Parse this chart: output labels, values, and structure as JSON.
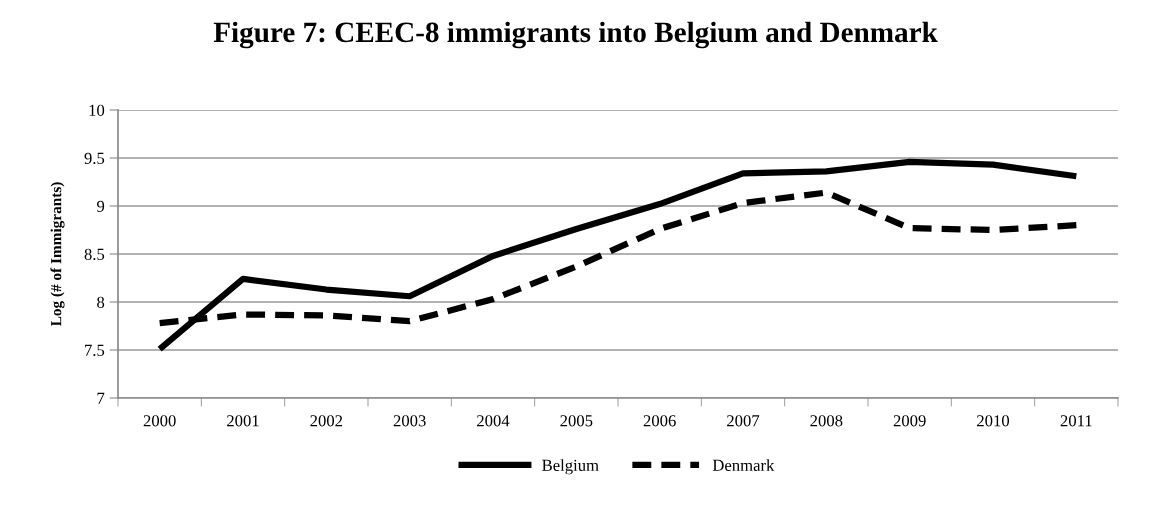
{
  "chart_data": {
    "type": "line",
    "title": "Figure 7: CEEC-8 immigrants into Belgium and Denmark",
    "ylabel": "Log (# of Immigrants)",
    "categories": [
      "2000",
      "2001",
      "2002",
      "2003",
      "2004",
      "2005",
      "2006",
      "2007",
      "2008",
      "2009",
      "2010",
      "2011"
    ],
    "series": [
      {
        "name": "Belgium",
        "color": "#000000",
        "line_style": "solid",
        "values": [
          7.51,
          8.24,
          8.13,
          8.06,
          8.48,
          8.76,
          9.02,
          9.34,
          9.36,
          9.46,
          9.43,
          9.31
        ]
      },
      {
        "name": "Denmark",
        "color": "#000000",
        "line_style": "dashed",
        "values": [
          7.78,
          7.87,
          7.86,
          7.8,
          8.03,
          8.37,
          8.76,
          9.03,
          9.14,
          8.77,
          8.75,
          8.8
        ]
      }
    ],
    "ylim": [
      7,
      10
    ],
    "yticks": [
      7,
      7.5,
      8,
      8.5,
      9,
      9.5,
      10
    ],
    "grid": "y",
    "legend": "bottom",
    "marker": "none"
  }
}
